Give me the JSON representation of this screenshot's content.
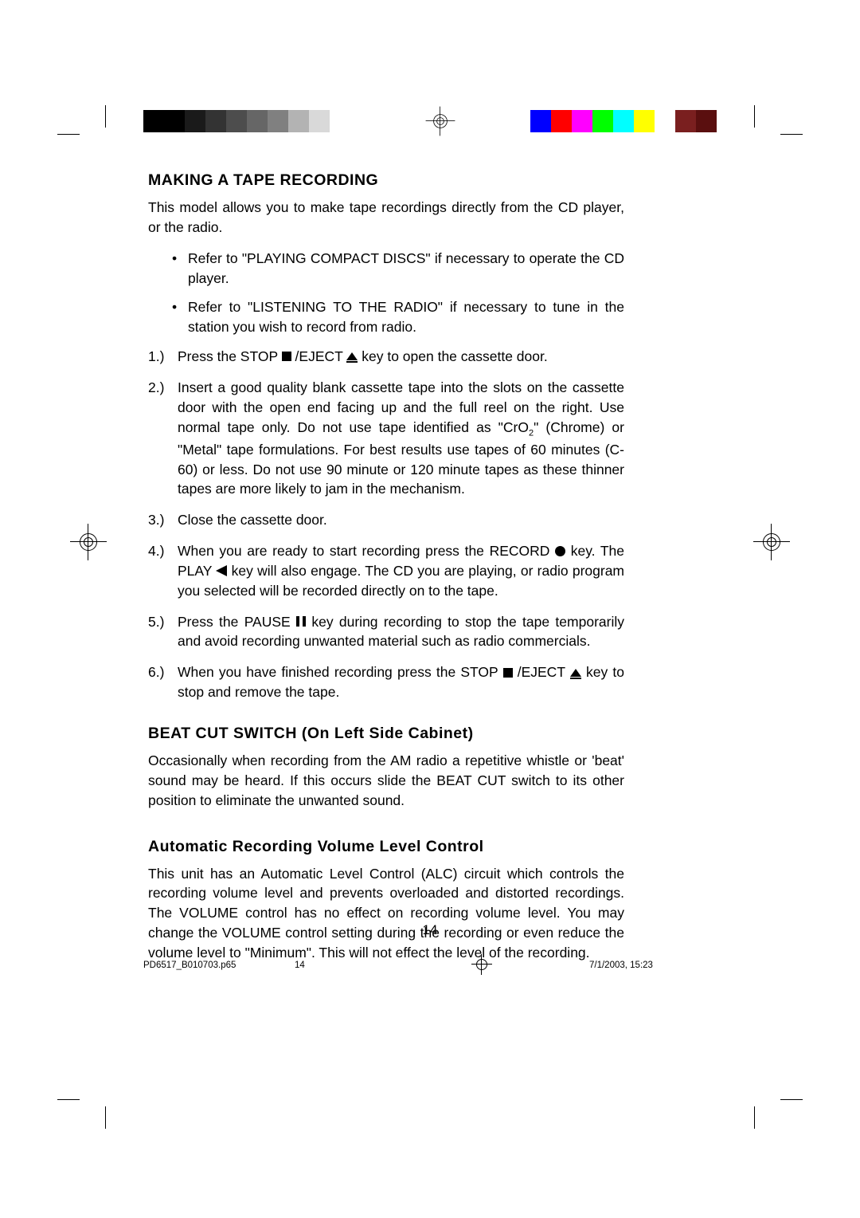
{
  "calib": {
    "left_shades": [
      "#000000",
      "#000000",
      "#1a1a1a",
      "#333333",
      "#4d4d4d",
      "#666666",
      "#808080",
      "#b3b3b3",
      "#d9d9d9",
      "#ffffff"
    ],
    "right_colors": [
      "#0000ff",
      "#ff0000",
      "#ff00ff",
      "#00ff00",
      "#00ffff",
      "#ffff00",
      "#ffffff",
      "#7a1f1f",
      "#5a0f0f"
    ]
  },
  "section1": {
    "heading": "MAKING A TAPE RECORDING",
    "intro": "This model allows you to make tape recordings directly from the CD player, or the radio.",
    "bullets": [
      "Refer to \"PLAYING COMPACT DISCS\" if necessary to operate the CD player.",
      "Refer to \"LISTENING TO THE RADIO\" if necessary to tune in the station you wish to record from radio."
    ],
    "steps": {
      "n1": "1.)",
      "s1a": "Press the STOP ",
      "s1b": " /EJECT ",
      "s1c": " key to open the cassette door.",
      "n2": "2.)",
      "s2a": "Insert a good quality blank cassette tape into the slots on the cassette door with the open end facing up and the full reel on the right. Use normal tape only. Do not use tape identified as \"CrO",
      "s2b": "\" (Chrome) or \"Metal\" tape formulations. For best results use tapes of 60 minutes (C-60) or less. Do not use 90 minute or 120 minute tapes as these thinner tapes are more likely to jam in the mechanism.",
      "n3": "3.)",
      "s3": "Close the cassette door.",
      "n4": "4.)",
      "s4a": "When you are ready to start recording press the RECORD ",
      "s4b": " key. The PLAY ",
      "s4c": " key will also engage. The CD you are playing, or radio program you selected will be recorded directly on to the tape.",
      "n5": "5.)",
      "s5a": "Press the PAUSE ",
      "s5b": " key during recording to stop the tape temporarily and avoid recording unwanted material such as radio commercials.",
      "n6": "6.)",
      "s6a": "When you have finished recording press the STOP ",
      "s6b": " /EJECT ",
      "s6c": " key to stop and remove the tape."
    }
  },
  "section2": {
    "heading": "BEAT CUT SWITCH (On Left Side Cabinet)",
    "body": "Occasionally when recording from the AM radio a repetitive whistle or 'beat' sound may be heard. If this occurs slide the BEAT CUT switch to its other position to eliminate the unwanted sound."
  },
  "section3": {
    "heading": "Automatic Recording Volume Level Control",
    "body": "This unit has an Automatic Level Control (ALC) circuit which controls the recording volume level and prevents overloaded and distorted recordings. The VOLUME control has no effect on recording volume level. You may change the VOLUME control setting during the recording or even reduce the volume level to \"Minimum\". This will not effect the level of the recording."
  },
  "page_number": "14",
  "footer": {
    "filename": "PD6517_B010703.p65",
    "page": "14",
    "datetime": "7/1/2003, 15:23"
  }
}
